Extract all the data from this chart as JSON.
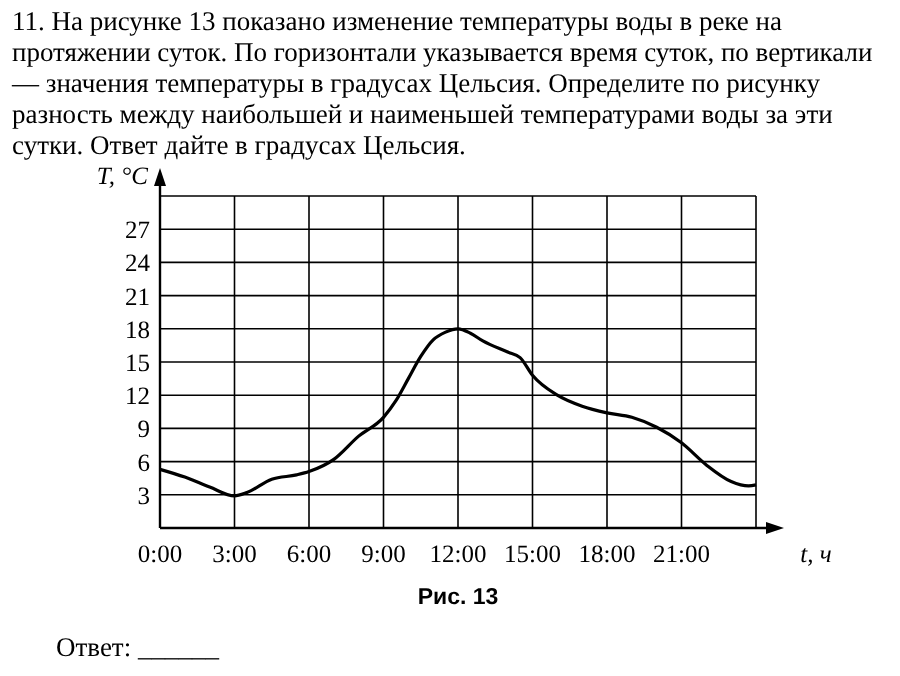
{
  "chart_data": {
    "type": "line",
    "title": "11. На рисунке 13 показано изменение температуры воды в реке на протяжении суток. По горизонтали указывается время суток, по вертикали — значения температуры в градусах Цельсия. Определите по рисунку разность между наибольшей и наименьшей температурами воды за эти сутки. Ответ дайте в градусах Цельсия.",
    "xlabel": "t, ч",
    "ylabel": "T, °C",
    "annotations": [
      "Рис. 13",
      "Ответ: ______"
    ],
    "x": [
      0,
      1,
      2,
      3,
      3.5,
      4.5,
      5.5,
      6,
      7,
      8,
      9,
      9.5,
      10,
      10.5,
      11,
      11.5,
      12,
      12.5,
      13,
      14,
      14.5,
      15,
      16,
      17,
      18,
      19,
      20,
      21,
      22,
      23,
      23.7,
      24
    ],
    "series": [
      {
        "color": "#000000",
        "values": [
          5.3,
          4.6,
          3.7,
          2.9,
          3.2,
          4.4,
          4.8,
          5.1,
          6.2,
          8.3,
          10,
          11.5,
          13.5,
          15.5,
          17,
          17.7,
          18,
          17.6,
          16.9,
          15.9,
          15.4,
          13.8,
          12,
          11,
          10.4,
          10,
          9.1,
          7.7,
          5.7,
          4.2,
          3.8,
          3.9
        ]
      }
    ],
    "xlim": [
      0,
      24
    ],
    "xticks": [
      {
        "value": 0,
        "label": "0:00"
      },
      {
        "value": 3,
        "label": "3:00"
      },
      {
        "value": 6,
        "label": "6:00"
      },
      {
        "value": 9,
        "label": "9:00"
      },
      {
        "value": 12,
        "label": "12:00"
      },
      {
        "value": 15,
        "label": "15:00"
      },
      {
        "value": 18,
        "label": "18:00"
      },
      {
        "value": 21,
        "label": "21:00"
      },
      {
        "value": 24,
        "label": null
      }
    ],
    "ylim": [
      0,
      30
    ],
    "yticks": [
      3,
      6,
      9,
      12,
      15,
      18,
      21,
      24,
      27,
      {
        "value": 30,
        "label": null
      }
    ],
    "grid": true,
    "marker": "none",
    "line_style": "solid"
  }
}
